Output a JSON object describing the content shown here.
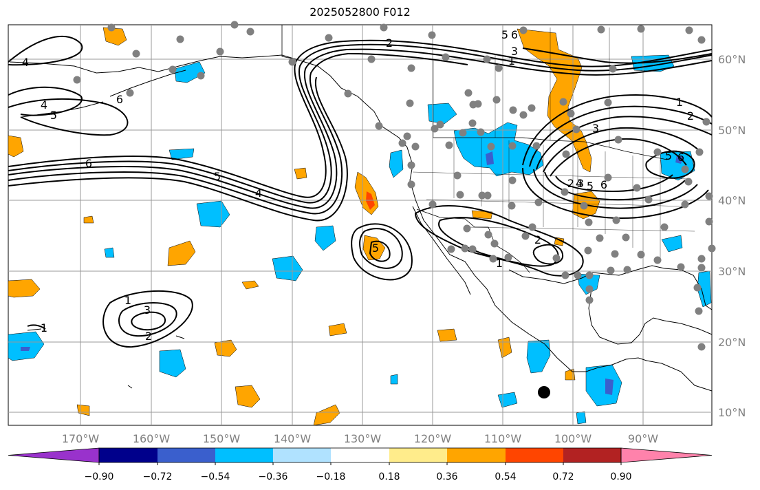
{
  "title": "2025052800 F012",
  "longitude_labels": [
    "170°W",
    "160°W",
    "150°W",
    "140°W",
    "130°W",
    "120°W",
    "110°W",
    "100°W",
    "90°W"
  ],
  "latitude_labels": [
    "60°N",
    "50°N",
    "40°N",
    "30°N",
    "20°N",
    "10°N"
  ],
  "contour_labels": [
    "4",
    "4",
    "5",
    "6",
    "6",
    "5",
    "4",
    "2",
    "6",
    "5",
    "3",
    "1",
    "1",
    "5",
    "3",
    "2",
    "1",
    "2",
    "1",
    "3",
    "2",
    "5",
    "6",
    "4",
    "3",
    "6",
    "5",
    "1",
    "2"
  ],
  "colorbar": {
    "tick_labels": [
      "−0.90",
      "−0.72",
      "−0.54",
      "−0.36",
      "−0.18",
      "0.18",
      "0.36",
      "0.54",
      "0.72",
      "0.90"
    ],
    "colors": [
      "#9932cc",
      "#00008b",
      "#3a5fcd",
      "#00bfff",
      "#b0e2ff",
      "#ffffff",
      "#ffec8b",
      "#ffa500",
      "#ff4500",
      "#b22222",
      "#ff82ab"
    ]
  },
  "colors": {
    "orange": "#ffa500",
    "red": "#ff4500",
    "cyan": "#00bfff",
    "blue": "#3a5fcd",
    "station": "#808080",
    "marker": "#000000"
  }
}
